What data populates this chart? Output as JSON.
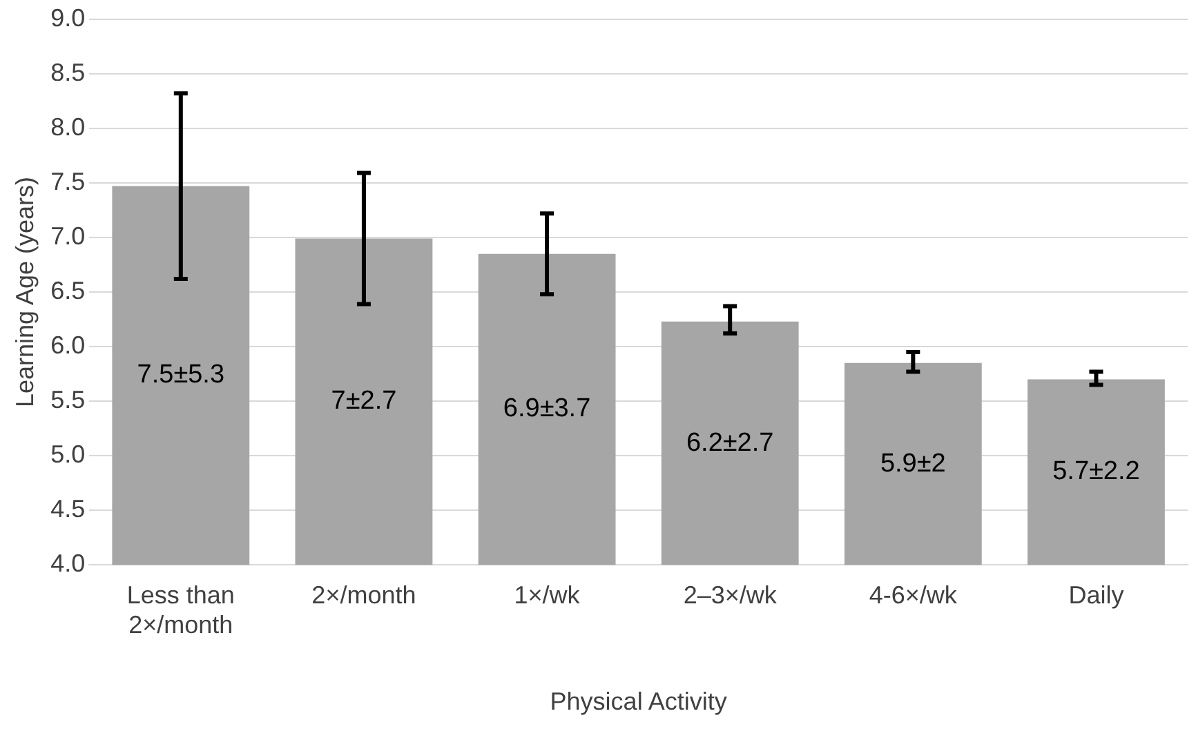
{
  "chart_data": {
    "type": "bar",
    "xlabel": "Physical Activity",
    "ylabel": "Learning Age (years)",
    "categories": [
      "Less than 2×/month",
      "2×/month",
      "1×/wk",
      "2–3×/wk",
      "4-6×/wk",
      "Daily"
    ],
    "values": [
      7.47,
      6.99,
      6.85,
      6.23,
      5.85,
      5.7
    ],
    "errors": [
      [
        6.62,
        8.32
      ],
      [
        6.39,
        7.59
      ],
      [
        6.48,
        7.22
      ],
      [
        6.12,
        6.37
      ],
      [
        5.77,
        5.95
      ],
      [
        5.65,
        5.77
      ]
    ],
    "value_labels": [
      "7.5±5.3",
      "7±2.7",
      "6.9±3.7",
      "6.2±2.7",
      "5.9±2",
      "5.7±2.2"
    ],
    "color": "#a6a6a6",
    "ylim": [
      4,
      9
    ],
    "yticks": [
      {
        "value": 4,
        "label": "4.0"
      },
      {
        "value": 4.5,
        "label": "4.5"
      },
      {
        "value": 5,
        "label": "5.0"
      },
      {
        "value": 5.5,
        "label": "5.5"
      },
      {
        "value": 6,
        "label": "6.0"
      },
      {
        "value": 6.5,
        "label": "6.5"
      },
      {
        "value": 7,
        "label": "7.0"
      },
      {
        "value": 7.5,
        "label": "7.5"
      },
      {
        "value": 8,
        "label": "8.0"
      },
      {
        "value": 8.5,
        "label": "8.5"
      },
      {
        "value": 9,
        "label": "9.0"
      }
    ],
    "grid": "y",
    "legend": false
  }
}
